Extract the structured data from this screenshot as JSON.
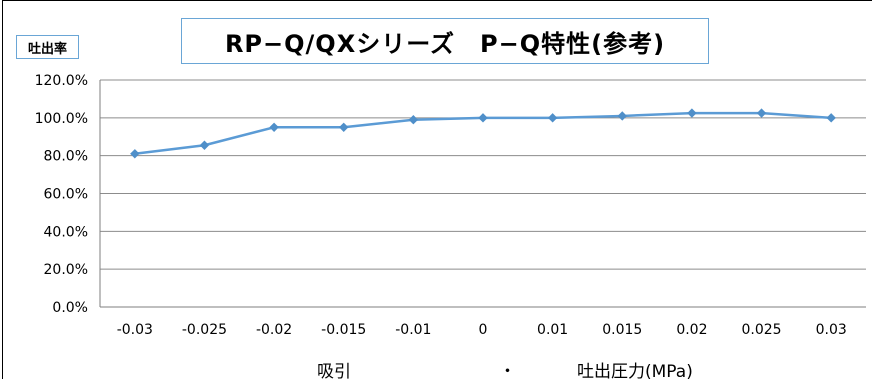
{
  "chart_data": {
    "type": "line",
    "title": "RP−Q/QXシリーズ　P−Q特性(参考)",
    "ylabel": "吐出率",
    "xlabel": {
      "left": "吸引",
      "separator": "・",
      "right": "吐出圧力(MPa)"
    },
    "categories": [
      "-0.03",
      "-0.025",
      "-0.02",
      "-0.015",
      "-0.01",
      "0",
      "0.01",
      "0.015",
      "0.02",
      "0.025",
      "0.03"
    ],
    "series": [
      {
        "values": [
          81,
          85.5,
          95,
          95,
          99,
          100,
          100,
          101,
          102.5,
          102.5,
          100
        ]
      }
    ],
    "ylim": [
      0,
      120
    ],
    "yticks": [
      "0.0%",
      "20.0%",
      "40.0%",
      "60.0%",
      "80.0%",
      "100.0%",
      "120.0%"
    ],
    "grid": true,
    "legend": "none",
    "colors": {
      "line": "#5b9bd5",
      "marker": "#4f8fc9",
      "grid": "#8c8c8c"
    }
  }
}
